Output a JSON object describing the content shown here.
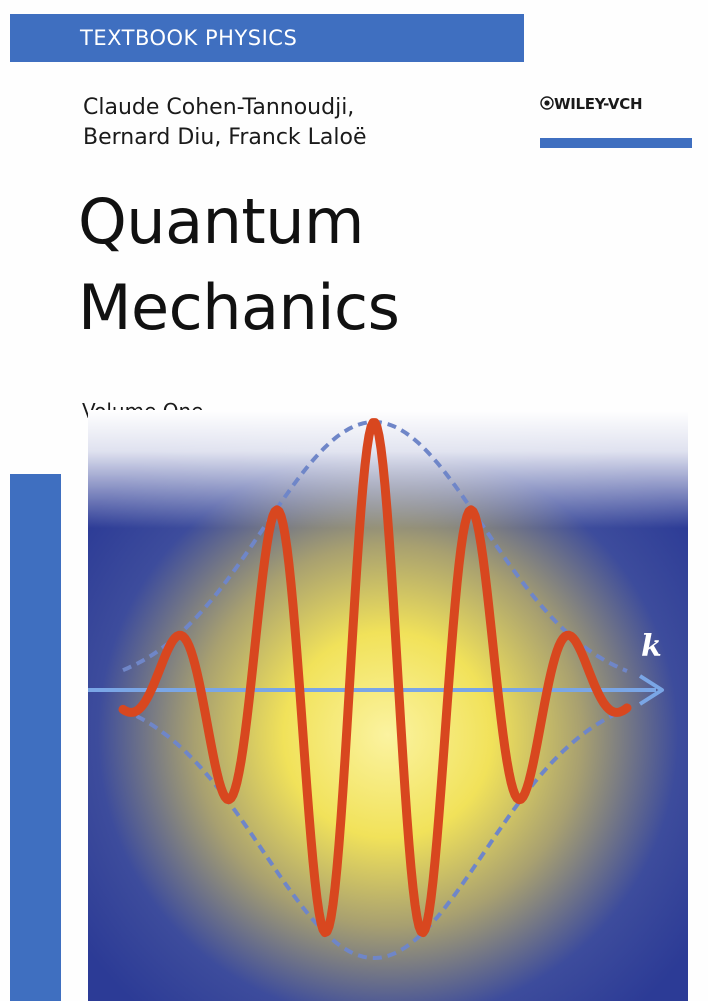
{
  "cover": {
    "series": "TEXTBOOK PHYSICS",
    "authors": [
      "Claude Cohen-Tannoudji,",
      "Bernard Diu, Franck Laloë"
    ],
    "publisher": "WILEY-VCH",
    "publisher_logo": "wiley-seal-icon",
    "title_lines": [
      "Quantum",
      "Mechanics"
    ],
    "volume": "Volume One",
    "axis_label": "k",
    "colors": {
      "brand_blue": "#3f6fc0",
      "background_blue": "#2f3f9a",
      "glow_yellow": "#f2e45a",
      "wave_red": "#d8471f",
      "envelope_dash": "#6f86c8",
      "axis": "#7aa6e6"
    }
  }
}
